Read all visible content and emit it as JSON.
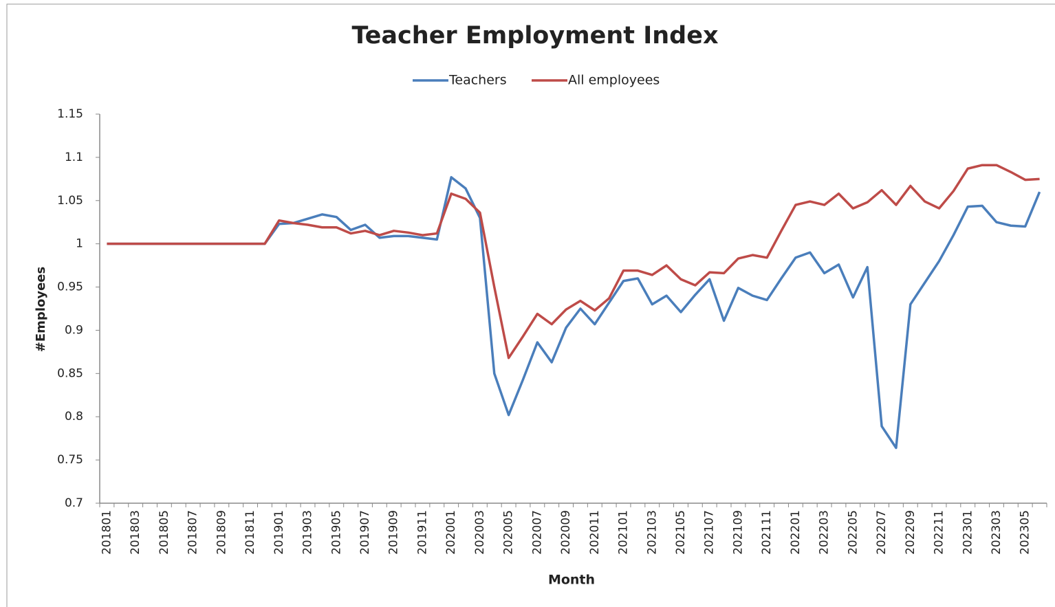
{
  "chart_data": {
    "type": "line",
    "title": "Teacher Employment Index",
    "x_label": "Month",
    "y_label": "#Employees",
    "categories": [
      "201801",
      null,
      "201803",
      null,
      "201805",
      null,
      "201807",
      null,
      "201809",
      null,
      "201811",
      null,
      "201901",
      null,
      "201903",
      null,
      "201905",
      null,
      "201907",
      null,
      "201909",
      null,
      "201911",
      null,
      "202001",
      null,
      "202003",
      null,
      "202005",
      null,
      "202007",
      null,
      "202009",
      null,
      "202011",
      null,
      "202101",
      null,
      "202103",
      null,
      "202105",
      null,
      "202107",
      null,
      "202109",
      null,
      "202111",
      null,
      "202201",
      null,
      "202203",
      null,
      "202205",
      null,
      "202207",
      null,
      "202209",
      null,
      "202211",
      null,
      "202301",
      null,
      "202303",
      null,
      "202305",
      null
    ],
    "series": [
      {
        "name": "Teachers",
        "color": "#4a7ebb",
        "values": [
          1,
          1,
          1,
          1,
          1,
          1,
          1,
          1,
          1,
          1,
          1,
          1,
          1.023,
          1.024,
          1.029,
          1.034,
          1.031,
          1.016,
          1.022,
          1.007,
          1.009,
          1.009,
          1.007,
          1.005,
          1.077,
          1.064,
          1.03,
          0.85,
          0.802,
          0.843,
          0.886,
          0.863,
          0.903,
          0.925,
          0.907,
          0.932,
          0.957,
          0.96,
          0.93,
          0.94,
          0.921,
          0.941,
          0.959,
          0.911,
          0.949,
          0.94,
          0.935,
          0.96,
          0.984,
          0.99,
          0.966,
          0.976,
          0.938,
          0.973,
          0.789,
          0.764,
          0.93,
          0.955,
          0.98,
          1.01,
          1.043,
          1.044,
          1.025,
          1.021,
          1.02,
          1.06
        ]
      },
      {
        "name": "All employees",
        "color": "#be4b48",
        "values": [
          1,
          1,
          1,
          1,
          1,
          1,
          1,
          1,
          1,
          1,
          1,
          1,
          1.027,
          1.024,
          1.022,
          1.019,
          1.019,
          1.012,
          1.015,
          1.01,
          1.015,
          1.013,
          1.01,
          1.012,
          1.058,
          1.052,
          1.036,
          0.95,
          0.868,
          0.893,
          0.919,
          0.907,
          0.924,
          0.934,
          0.923,
          0.937,
          0.969,
          0.969,
          0.964,
          0.975,
          0.959,
          0.952,
          0.967,
          0.966,
          0.983,
          0.987,
          0.984,
          1.015,
          1.045,
          1.049,
          1.045,
          1.058,
          1.041,
          1.048,
          1.062,
          1.045,
          1.067,
          1.049,
          1.041,
          1.061,
          1.087,
          1.091,
          1.091,
          1.083,
          1.074,
          1.075
        ]
      }
    ],
    "ylim": [
      0.7,
      1.15
    ],
    "yticks": [
      0.7,
      0.75,
      0.8,
      0.85,
      0.9,
      0.95,
      1,
      1.05,
      1.1,
      1.15
    ],
    "grid": false,
    "legend": "top"
  }
}
